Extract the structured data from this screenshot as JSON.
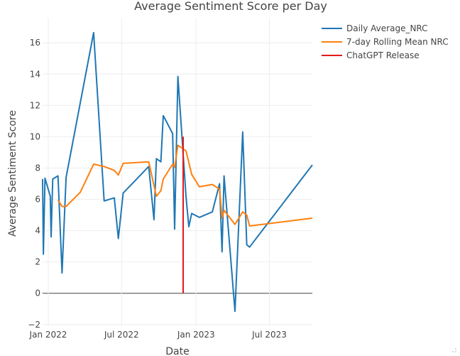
{
  "chart_data": {
    "type": "line",
    "title": "Average Sentiment Score per Day",
    "xlabel": "Date",
    "ylabel": "Average Sentiment Score",
    "xlim": [
      "2021-12-18",
      "2023-10-15"
    ],
    "ylim": [
      -2.1,
      17.6
    ],
    "x_ticks": [
      {
        "date": "2022-01-01",
        "label": "Jan 2022"
      },
      {
        "date": "2022-07-01",
        "label": "Jul 2022"
      },
      {
        "date": "2023-01-01",
        "label": "Jan 2023"
      },
      {
        "date": "2023-07-01",
        "label": "Jul 2023"
      }
    ],
    "y_ticks": [
      -2,
      0,
      2,
      4,
      6,
      8,
      10,
      12,
      14,
      16
    ],
    "legend_position": "top-right",
    "series": [
      {
        "name": "Daily Average_NRC",
        "color": "#1f77b4",
        "points": [
          [
            "2021-12-18",
            7.3
          ],
          [
            "2021-12-20",
            2.5
          ],
          [
            "2021-12-24",
            7.35
          ],
          [
            "2022-01-06",
            6.2
          ],
          [
            "2022-01-08",
            3.6
          ],
          [
            "2022-01-12",
            7.3
          ],
          [
            "2022-01-25",
            7.5
          ],
          [
            "2022-02-04",
            1.3
          ],
          [
            "2022-02-14",
            7.4
          ],
          [
            "2022-04-23",
            16.65
          ],
          [
            "2022-05-19",
            5.9
          ],
          [
            "2022-06-13",
            6.1
          ],
          [
            "2022-06-23",
            3.5
          ],
          [
            "2022-07-05",
            6.4
          ],
          [
            "2022-09-06",
            8.1
          ],
          [
            "2022-09-19",
            4.7
          ],
          [
            "2022-09-25",
            8.6
          ],
          [
            "2022-10-06",
            8.4
          ],
          [
            "2022-10-12",
            11.35
          ],
          [
            "2022-11-04",
            10.2
          ],
          [
            "2022-11-09",
            4.1
          ],
          [
            "2022-11-17",
            13.85
          ],
          [
            "2022-12-07",
            6.2
          ],
          [
            "2022-12-14",
            4.25
          ],
          [
            "2022-12-21",
            5.1
          ],
          [
            "2023-01-09",
            4.85
          ],
          [
            "2023-02-10",
            5.2
          ],
          [
            "2023-02-28",
            7.0
          ],
          [
            "2023-03-06",
            2.65
          ],
          [
            "2023-03-11",
            7.5
          ],
          [
            "2023-04-07",
            -1.15
          ],
          [
            "2023-04-26",
            10.3
          ],
          [
            "2023-05-06",
            3.1
          ],
          [
            "2023-05-13",
            2.95
          ],
          [
            "2023-10-15",
            8.2
          ]
        ]
      },
      {
        "name": "7-day Rolling Mean NRC",
        "color": "#ff7f0e",
        "points": [
          [
            "2022-01-25",
            5.95
          ],
          [
            "2022-02-04",
            5.55
          ],
          [
            "2022-02-14",
            5.55
          ],
          [
            "2022-03-21",
            6.45
          ],
          [
            "2022-04-23",
            8.25
          ],
          [
            "2022-05-19",
            8.1
          ],
          [
            "2022-06-13",
            7.85
          ],
          [
            "2022-06-23",
            7.55
          ],
          [
            "2022-07-05",
            8.3
          ],
          [
            "2022-09-06",
            8.4
          ],
          [
            "2022-09-25",
            6.2
          ],
          [
            "2022-10-06",
            6.55
          ],
          [
            "2022-10-12",
            7.3
          ],
          [
            "2022-11-04",
            8.25
          ],
          [
            "2022-11-09",
            8.05
          ],
          [
            "2022-11-17",
            9.45
          ],
          [
            "2022-12-07",
            9.1
          ],
          [
            "2022-12-21",
            7.6
          ],
          [
            "2023-01-09",
            6.8
          ],
          [
            "2023-02-10",
            6.95
          ],
          [
            "2023-02-28",
            6.65
          ],
          [
            "2023-03-06",
            4.8
          ],
          [
            "2023-03-11",
            5.3
          ],
          [
            "2023-04-07",
            4.4
          ],
          [
            "2023-04-26",
            5.2
          ],
          [
            "2023-05-06",
            5.0
          ],
          [
            "2023-05-13",
            4.3
          ],
          [
            "2023-10-15",
            4.8
          ]
        ]
      },
      {
        "name": "ChatGPT Release",
        "color": "#e31a1c",
        "points": [
          [
            "2022-11-30",
            0
          ],
          [
            "2022-11-30",
            10
          ]
        ]
      }
    ]
  }
}
